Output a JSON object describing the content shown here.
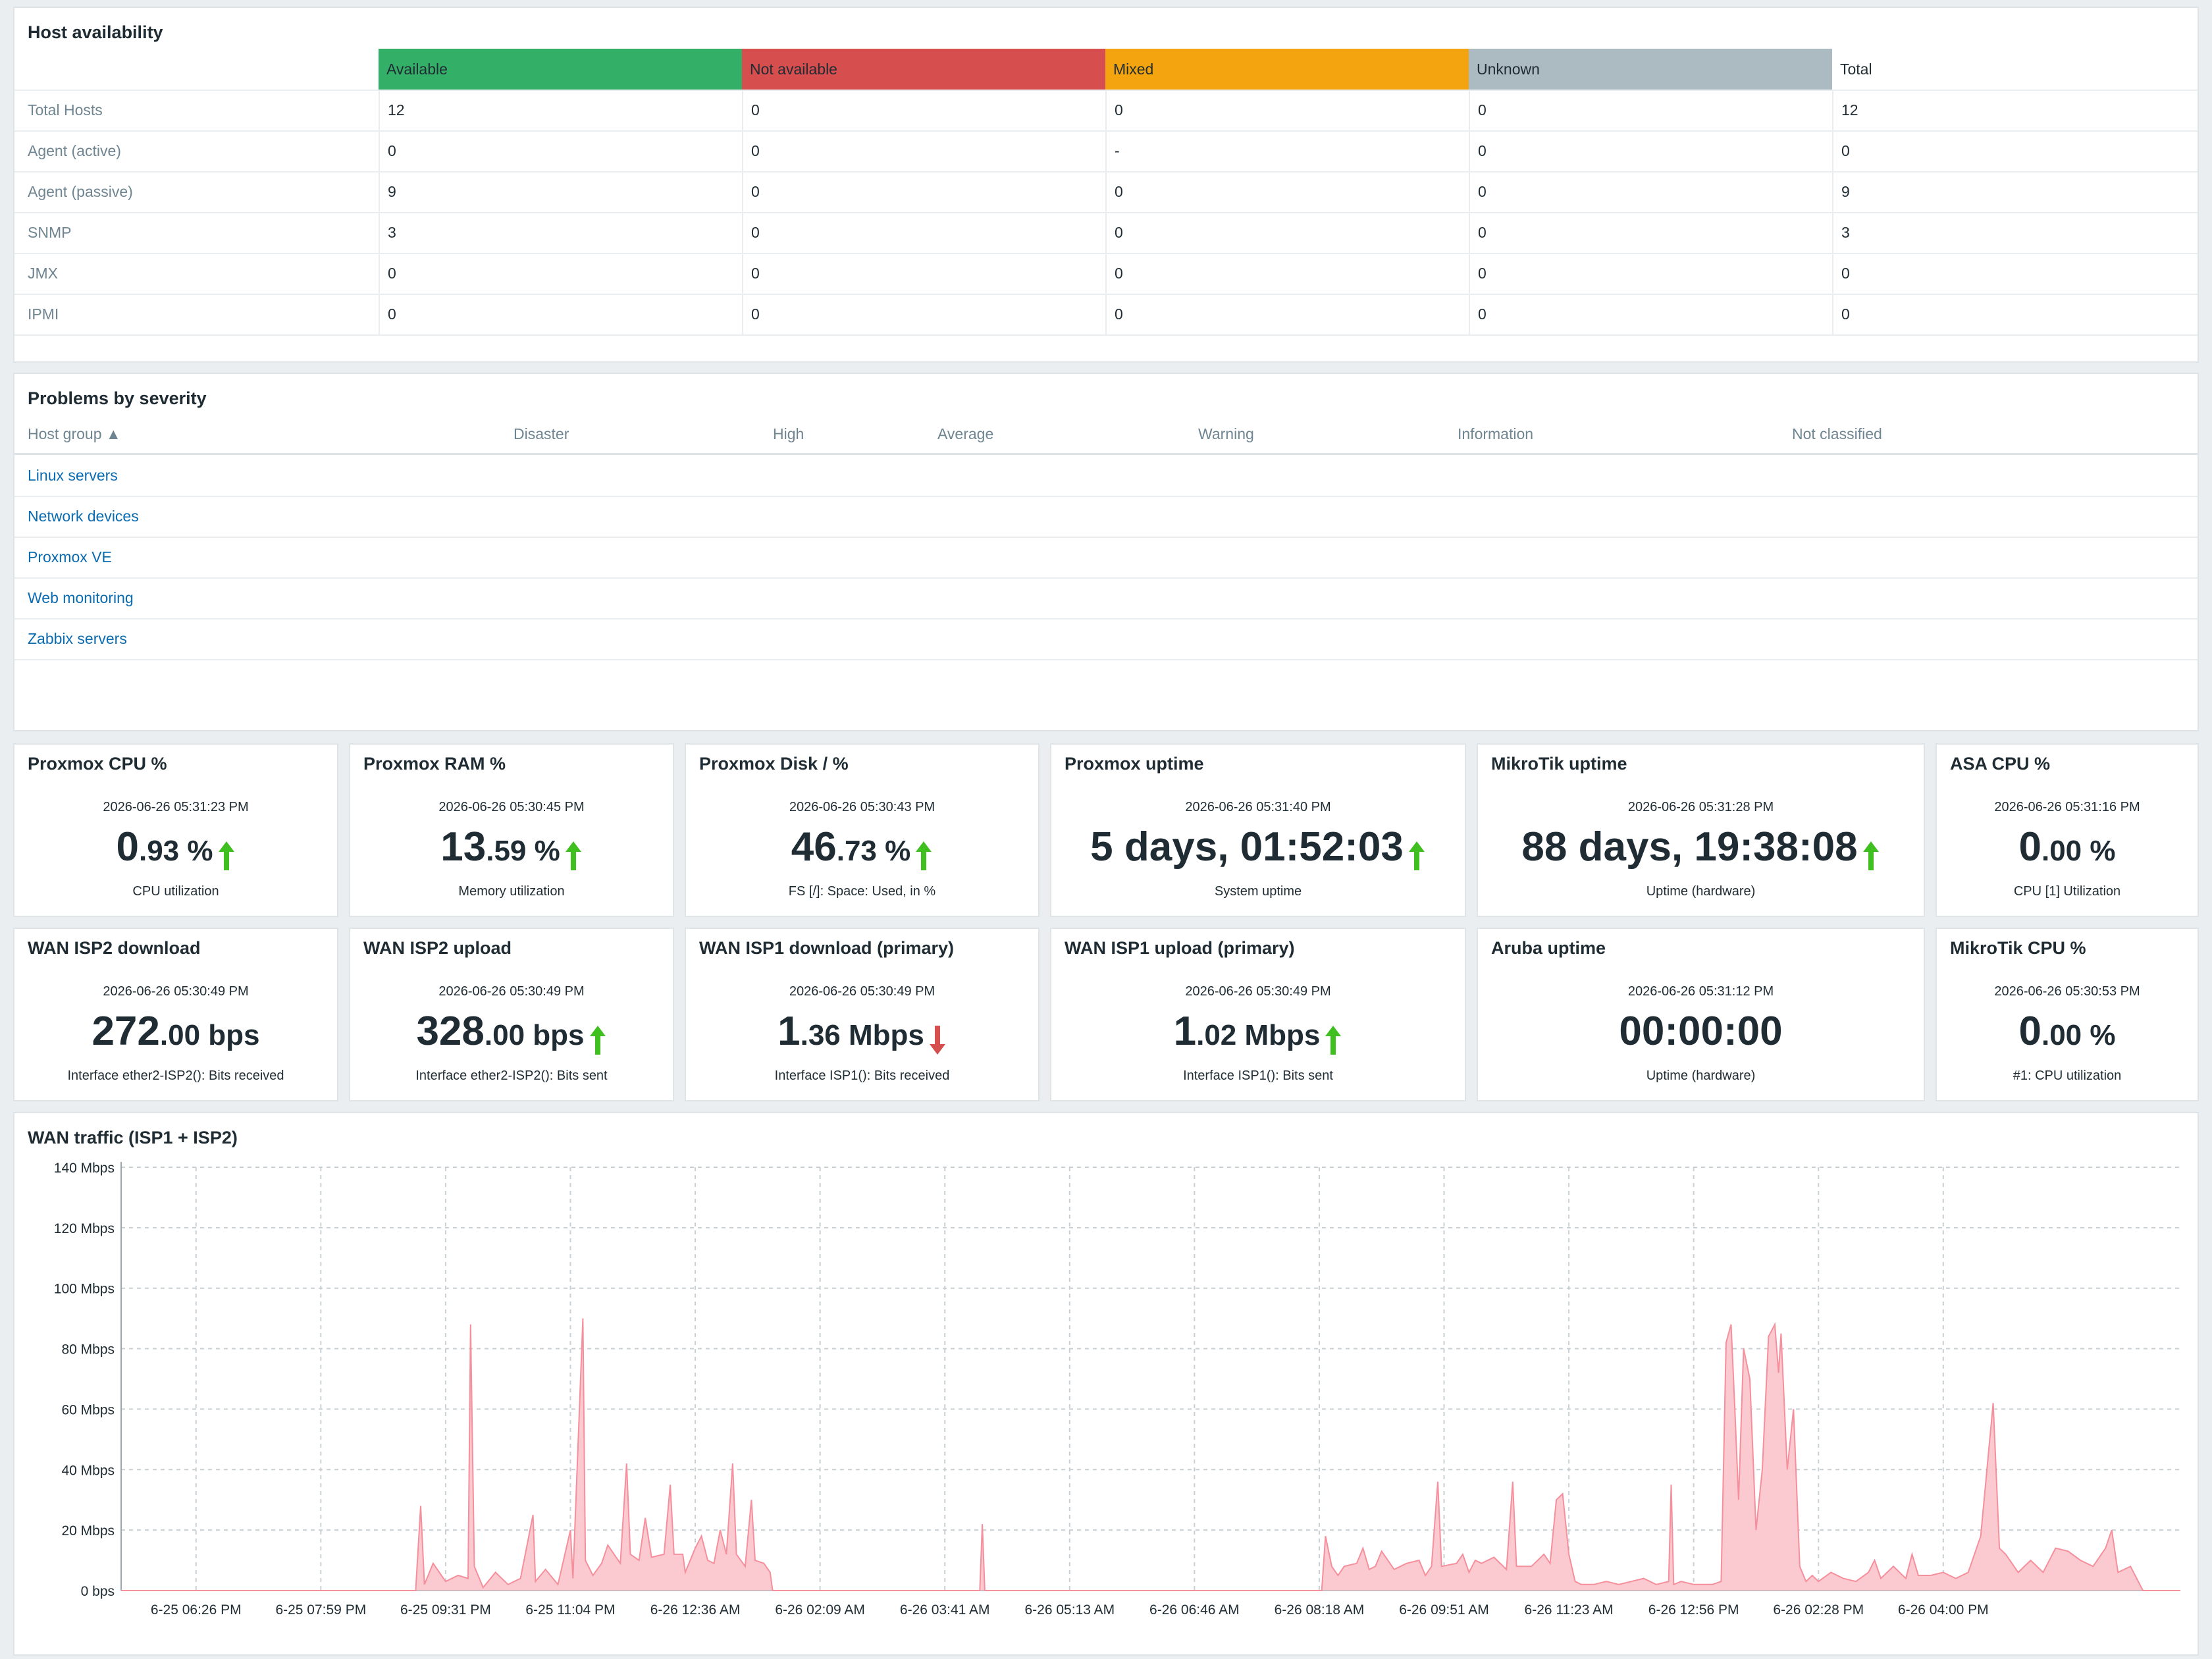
{
  "host_availability": {
    "title": "Host availability",
    "columns": [
      "Available",
      "Not available",
      "Mixed",
      "Unknown",
      "Total"
    ],
    "column_colors": [
      "#34af67",
      "#d64e4e",
      "#f4a40e",
      "#acbbc2",
      "#ffffff"
    ],
    "rows": [
      {
        "label": "Total Hosts",
        "values": [
          "12",
          "0",
          "0",
          "0",
          "12"
        ]
      },
      {
        "label": "Agent (active)",
        "values": [
          "0",
          "0",
          "-",
          "0",
          "0"
        ]
      },
      {
        "label": "Agent (passive)",
        "values": [
          "9",
          "0",
          "0",
          "0",
          "9"
        ]
      },
      {
        "label": "SNMP",
        "values": [
          "3",
          "0",
          "0",
          "0",
          "3"
        ]
      },
      {
        "label": "JMX",
        "values": [
          "0",
          "0",
          "0",
          "0",
          "0"
        ]
      },
      {
        "label": "IPMI",
        "values": [
          "0",
          "0",
          "0",
          "0",
          "0"
        ]
      }
    ]
  },
  "problems_by_severity": {
    "title": "Problems by severity",
    "headers": [
      "Host group ▲",
      "Disaster",
      "High",
      "Average",
      "Warning",
      "Information",
      "Not classified"
    ],
    "groups": [
      "Linux servers",
      "Network devices",
      "Proxmox VE",
      "Web monitoring",
      "Zabbix servers"
    ]
  },
  "cards": [
    {
      "title": "Proxmox CPU %",
      "timestamp": "2026-06-26 05:31:23 PM",
      "big": "0",
      "small": ".93 %",
      "arrow": "up",
      "desc": "CPU utilization"
    },
    {
      "title": "Proxmox RAM %",
      "timestamp": "2026-06-26 05:30:45 PM",
      "big": "13",
      "small": ".59 %",
      "arrow": "up",
      "desc": "Memory utilization"
    },
    {
      "title": "Proxmox Disk / %",
      "timestamp": "2026-06-26 05:30:43 PM",
      "big": "46",
      "small": ".73 %",
      "arrow": "up",
      "desc": "FS [/]: Space: Used, in %"
    },
    {
      "title": "Proxmox uptime",
      "timestamp": "2026-06-26 05:31:40 PM",
      "big": "5 days, 01:52:03",
      "small": "",
      "arrow": "up",
      "desc": "System uptime"
    },
    {
      "title": "MikroTik uptime",
      "timestamp": "2026-06-26 05:31:28 PM",
      "big": "88 days, 19:38:08",
      "small": "",
      "arrow": "up",
      "desc": "Uptime (hardware)"
    },
    {
      "title": "ASA CPU %",
      "timestamp": "2026-06-26 05:31:16 PM",
      "big": "0",
      "small": ".00 %",
      "arrow": "none",
      "desc": "CPU [1] Utilization"
    },
    {
      "title": "WAN ISP2 download",
      "timestamp": "2026-06-26 05:30:49 PM",
      "big": "272",
      "small": ".00 bps",
      "arrow": "none",
      "desc": "Interface ether2-ISP2(): Bits received"
    },
    {
      "title": "WAN ISP2 upload",
      "timestamp": "2026-06-26 05:30:49 PM",
      "big": "328",
      "small": ".00 bps",
      "arrow": "up",
      "desc": "Interface ether2-ISP2(): Bits sent"
    },
    {
      "title": "WAN ISP1 download (primary)",
      "timestamp": "2026-06-26 05:30:49 PM",
      "big": "1",
      "small": ".36 Mbps",
      "arrow": "down",
      "desc": "Interface ISP1(): Bits received"
    },
    {
      "title": "WAN ISP1 upload (primary)",
      "timestamp": "2026-06-26 05:30:49 PM",
      "big": "1",
      "small": ".02 Mbps",
      "arrow": "up",
      "desc": "Interface ISP1(): Bits sent"
    },
    {
      "title": "Aruba uptime",
      "timestamp": "2026-06-26 05:31:12 PM",
      "big": "00:00:00",
      "small": "",
      "arrow": "none",
      "desc": "Uptime (hardware)"
    },
    {
      "title": "MikroTik CPU %",
      "timestamp": "2026-06-26 05:30:53 PM",
      "big": "0",
      "small": ".00 %",
      "arrow": "none",
      "desc": "#1: CPU utilization"
    }
  ],
  "arrow_colors": {
    "up": "#3fbf20",
    "down": "#d64e4e"
  },
  "chart_data": {
    "type": "area",
    "title": "WAN traffic (ISP1 + ISP2)",
    "y_unit": "Mbps",
    "ylim": [
      0,
      140
    ],
    "y_ticks": [
      "0 bps",
      "20 Mbps",
      "40 Mbps",
      "60 Mbps",
      "80 Mbps",
      "100 Mbps",
      "120 Mbps",
      "140 Mbps"
    ],
    "x_ticks": [
      "6-25 06:26 PM",
      "6-25 07:59 PM",
      "6-25 09:31 PM",
      "6-25 11:04 PM",
      "6-26 12:36 AM",
      "6-26 02:09 AM",
      "6-26 03:41 AM",
      "6-26 05:13 AM",
      "6-26 06:46 AM",
      "6-26 08:18 AM",
      "6-26 09:51 AM",
      "6-26 11:23 AM",
      "6-26 12:56 PM",
      "6-26 02:28 PM",
      "6-26 04:00 PM"
    ],
    "x_range": [
      "6-25 05:20 PM",
      "6-26 05:31 PM"
    ],
    "grid": true,
    "series_color": "#f58f9c",
    "series": [
      {
        "points": [
          [
            0,
            0
          ],
          [
            2.36,
            0
          ],
          [
            2.4,
            28
          ],
          [
            2.43,
            2
          ],
          [
            2.5,
            9
          ],
          [
            2.6,
            3
          ],
          [
            2.7,
            5
          ],
          [
            2.78,
            4
          ],
          [
            2.8,
            88
          ],
          [
            2.83,
            8
          ],
          [
            2.9,
            1
          ],
          [
            3.0,
            6
          ],
          [
            3.1,
            2
          ],
          [
            3.2,
            4
          ],
          [
            3.3,
            25
          ],
          [
            3.32,
            3
          ],
          [
            3.4,
            7
          ],
          [
            3.5,
            2
          ],
          [
            3.6,
            20
          ],
          [
            3.62,
            4
          ],
          [
            3.7,
            90
          ],
          [
            3.72,
            10
          ],
          [
            3.78,
            5
          ],
          [
            3.85,
            9
          ],
          [
            3.9,
            15
          ],
          [
            4.0,
            9
          ],
          [
            4.05,
            42
          ],
          [
            4.08,
            12
          ],
          [
            4.15,
            10
          ],
          [
            4.2,
            24
          ],
          [
            4.25,
            11
          ],
          [
            4.35,
            12
          ],
          [
            4.4,
            35
          ],
          [
            4.43,
            12
          ],
          [
            4.5,
            12
          ],
          [
            4.52,
            6
          ],
          [
            4.6,
            14
          ],
          [
            4.65,
            18
          ],
          [
            4.7,
            10
          ],
          [
            4.75,
            9
          ],
          [
            4.8,
            20
          ],
          [
            4.85,
            12
          ],
          [
            4.9,
            42
          ],
          [
            4.93,
            12
          ],
          [
            5.0,
            8
          ],
          [
            5.05,
            30
          ],
          [
            5.08,
            10
          ],
          [
            5.15,
            9
          ],
          [
            5.2,
            6
          ],
          [
            5.22,
            0
          ],
          [
            5.5,
            0
          ],
          [
            6.0,
            0
          ],
          [
            6.5,
            0
          ],
          [
            6.88,
            0
          ],
          [
            6.9,
            22
          ],
          [
            6.92,
            0
          ],
          [
            7.5,
            0
          ],
          [
            8.0,
            0
          ],
          [
            8.5,
            0
          ],
          [
            9.0,
            0
          ],
          [
            9.5,
            0
          ],
          [
            9.62,
            0
          ],
          [
            9.65,
            18
          ],
          [
            9.7,
            8
          ],
          [
            9.75,
            5
          ],
          [
            9.8,
            8
          ],
          [
            9.9,
            9
          ],
          [
            9.95,
            14
          ],
          [
            10.0,
            7
          ],
          [
            10.05,
            8
          ],
          [
            10.1,
            13
          ],
          [
            10.2,
            7
          ],
          [
            10.25,
            8
          ],
          [
            10.3,
            9
          ],
          [
            10.4,
            10
          ],
          [
            10.45,
            5
          ],
          [
            10.5,
            8
          ],
          [
            10.55,
            36
          ],
          [
            10.58,
            8
          ],
          [
            10.7,
            9
          ],
          [
            10.75,
            12
          ],
          [
            10.8,
            6
          ],
          [
            10.85,
            10
          ],
          [
            10.9,
            9
          ],
          [
            11.0,
            11
          ],
          [
            11.1,
            7
          ],
          [
            11.15,
            36
          ],
          [
            11.18,
            8
          ],
          [
            11.3,
            8
          ],
          [
            11.4,
            12
          ],
          [
            11.45,
            9
          ],
          [
            11.5,
            30
          ],
          [
            11.55,
            32
          ],
          [
            11.6,
            12
          ],
          [
            11.65,
            3
          ],
          [
            11.7,
            2
          ],
          [
            11.8,
            2
          ],
          [
            11.9,
            3
          ],
          [
            12.0,
            2
          ],
          [
            12.1,
            3
          ],
          [
            12.2,
            4
          ],
          [
            12.3,
            2
          ],
          [
            12.4,
            3
          ],
          [
            12.42,
            35
          ],
          [
            12.44,
            2
          ],
          [
            12.5,
            3
          ],
          [
            12.6,
            2
          ],
          [
            12.75,
            2
          ],
          [
            12.82,
            3
          ],
          [
            12.86,
            82
          ],
          [
            12.9,
            88
          ],
          [
            12.93,
            60
          ],
          [
            12.96,
            30
          ],
          [
            13.0,
            80
          ],
          [
            13.05,
            70
          ],
          [
            13.1,
            20
          ],
          [
            13.15,
            40
          ],
          [
            13.2,
            84
          ],
          [
            13.25,
            88
          ],
          [
            13.28,
            72
          ],
          [
            13.3,
            85
          ],
          [
            13.35,
            40
          ],
          [
            13.4,
            60
          ],
          [
            13.45,
            8
          ],
          [
            13.5,
            3
          ],
          [
            13.55,
            5
          ],
          [
            13.6,
            3
          ],
          [
            13.7,
            6
          ],
          [
            13.8,
            4
          ],
          [
            13.9,
            3
          ],
          [
            14.0,
            6
          ],
          [
            14.05,
            10
          ],
          [
            14.1,
            4
          ],
          [
            14.2,
            8
          ],
          [
            14.3,
            4
          ],
          [
            14.35,
            12
          ],
          [
            14.4,
            5
          ],
          [
            14.5,
            5
          ],
          [
            14.6,
            6
          ],
          [
            14.7,
            4
          ],
          [
            14.8,
            6
          ],
          [
            14.9,
            18
          ],
          [
            15.0,
            62
          ],
          [
            15.05,
            14
          ],
          [
            15.1,
            12
          ],
          [
            15.2,
            6
          ],
          [
            15.3,
            10
          ],
          [
            15.4,
            6
          ],
          [
            15.5,
            14
          ],
          [
            15.6,
            13
          ],
          [
            15.7,
            10
          ],
          [
            15.8,
            8
          ],
          [
            15.9,
            14
          ],
          [
            15.95,
            20
          ],
          [
            16.0,
            6
          ],
          [
            16.1,
            8
          ],
          [
            16.2,
            0
          ],
          [
            16.5,
            0
          ]
        ]
      }
    ],
    "x_tick_positions": [
      0.6,
      1.6,
      2.6,
      3.6,
      4.6,
      5.6,
      6.6,
      7.6,
      8.6,
      9.6,
      10.6,
      11.6,
      12.6,
      13.6,
      14.6
    ],
    "x_max": 16.5
  }
}
